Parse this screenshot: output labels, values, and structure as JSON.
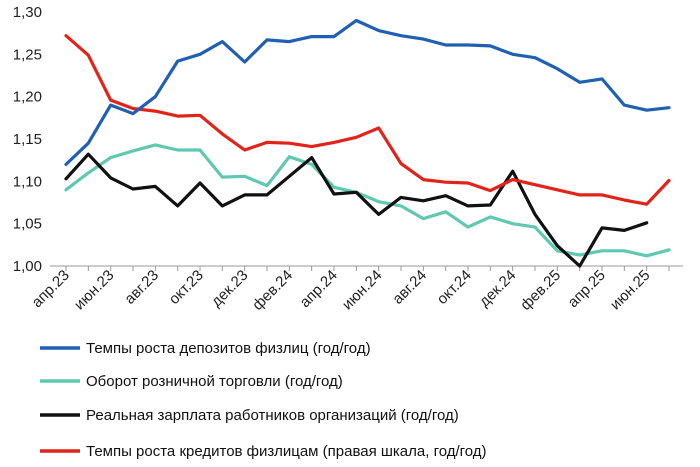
{
  "chart_data": {
    "type": "line",
    "x": [
      "апр.23",
      "май.23",
      "июн.23",
      "июл.23",
      "авг.23",
      "сен.23",
      "окт.23",
      "ноя.23",
      "дек.23",
      "янв.24",
      "фев.24",
      "мар.24",
      "апр.24",
      "май.24",
      "июн.24",
      "июл.24",
      "авг.24",
      "сен.24",
      "окт.24",
      "ноя.24",
      "дек.24",
      "янв.25",
      "фев.25",
      "мар.25",
      "апр.25",
      "май.25",
      "июн.25",
      "июл.25"
    ],
    "x_tick_labels": [
      "апр.23",
      "июн.23",
      "авг.23",
      "окт.23",
      "дек.23",
      "фев.24",
      "апр.24",
      "июн.24",
      "авг.24",
      "окт.24",
      "дек.24",
      "фев.25",
      "апр.25",
      "июн.25"
    ],
    "y_tick_labels": [
      "1,00",
      "1,05",
      "1,10",
      "1,15",
      "1,20",
      "1,25",
      "1,30"
    ],
    "ylim": [
      1.0,
      1.3
    ],
    "grid": false,
    "legend_position": "bottom",
    "series": [
      {
        "name": "Темпы роста депозитов физлиц (год/год)",
        "color": "#1f5fb4",
        "values": [
          1.12,
          1.145,
          1.19,
          1.18,
          1.2,
          1.242,
          1.25,
          1.265,
          1.241,
          1.267,
          1.265,
          1.271,
          1.271,
          1.29,
          1.278,
          1.272,
          1.268,
          1.261,
          1.261,
          1.26,
          1.25,
          1.246,
          1.233,
          1.217,
          1.221,
          1.19,
          1.184,
          1.187
        ]
      },
      {
        "name": "Оборот розничной торговли (год/год)",
        "color": "#5ec9b0",
        "values": [
          1.09,
          1.11,
          1.128,
          1.136,
          1.143,
          1.137,
          1.137,
          1.105,
          1.106,
          1.095,
          1.129,
          1.12,
          1.093,
          1.087,
          1.076,
          1.071,
          1.056,
          1.064,
          1.046,
          1.058,
          1.05,
          1.046,
          1.018,
          1.013,
          1.018,
          1.018,
          1.012,
          1.019
        ]
      },
      {
        "name": "Реальная зарплата работников организаций (год/год)",
        "color": "#111111",
        "values": [
          1.103,
          1.132,
          1.104,
          1.091,
          1.094,
          1.071,
          1.098,
          1.071,
          1.084,
          1.084,
          1.106,
          1.128,
          1.085,
          1.087,
          1.061,
          1.081,
          1.077,
          1.083,
          1.071,
          1.072,
          1.112,
          1.061,
          1.024,
          1.0,
          1.045,
          1.042,
          1.051,
          null
        ]
      },
      {
        "name": "Темпы роста кредитов физлицам (правая шкала, год/год)",
        "color": "#e2231a",
        "values": [
          1.272,
          1.249,
          1.196,
          1.186,
          1.183,
          1.177,
          1.178,
          1.156,
          1.137,
          1.146,
          1.145,
          1.141,
          1.146,
          1.152,
          1.163,
          1.121,
          1.102,
          1.099,
          1.098,
          1.089,
          1.102,
          1.096,
          1.09,
          1.084,
          1.084,
          1.078,
          1.073,
          1.101
        ]
      }
    ]
  }
}
